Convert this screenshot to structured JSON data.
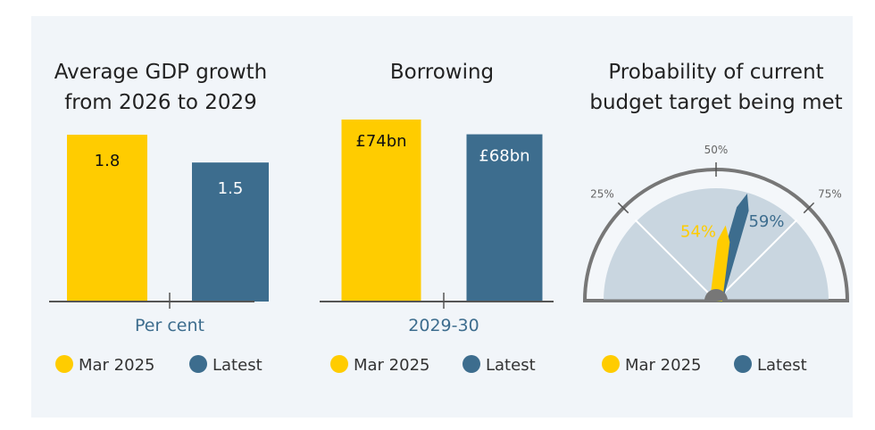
{
  "colors": {
    "mar2025": "#ffcc00",
    "latest": "#3d6d8e",
    "gauge_fill": "#c9d6e0",
    "gauge_outline": "#777777"
  },
  "chart_data": [
    {
      "type": "bar",
      "title_lines": [
        "Average GDP growth",
        "from 2026 to 2029"
      ],
      "xlabel": "Per cent",
      "categories": [
        "Mar 2025",
        "Latest"
      ],
      "values": [
        1.8,
        1.5
      ],
      "labels": [
        "1.8",
        "1.5"
      ],
      "ylim": [
        0,
        1.8
      ],
      "legend": [
        "Mar 2025",
        "Latest"
      ],
      "legend_placement": "bottom"
    },
    {
      "type": "bar",
      "title_lines": [
        "Borrowing"
      ],
      "xlabel": "2029-30",
      "categories": [
        "Mar 2025",
        "Latest"
      ],
      "values": [
        74,
        68
      ],
      "labels": [
        "£74bn",
        "£68bn"
      ],
      "ylim": [
        0,
        74
      ],
      "legend": [
        "Mar 2025",
        "Latest"
      ],
      "legend_placement": "bottom"
    },
    {
      "type": "gauge",
      "title_lines": [
        "Probability of current",
        "budget target being met"
      ],
      "ticks": [
        "25%",
        "50%",
        "75%"
      ],
      "range": [
        0,
        100
      ],
      "series": [
        {
          "name": "Mar 2025",
          "value": 54,
          "label": "54%"
        },
        {
          "name": "Latest",
          "value": 59,
          "label": "59%"
        }
      ],
      "legend": [
        "Mar 2025",
        "Latest"
      ],
      "legend_placement": "bottom"
    }
  ]
}
